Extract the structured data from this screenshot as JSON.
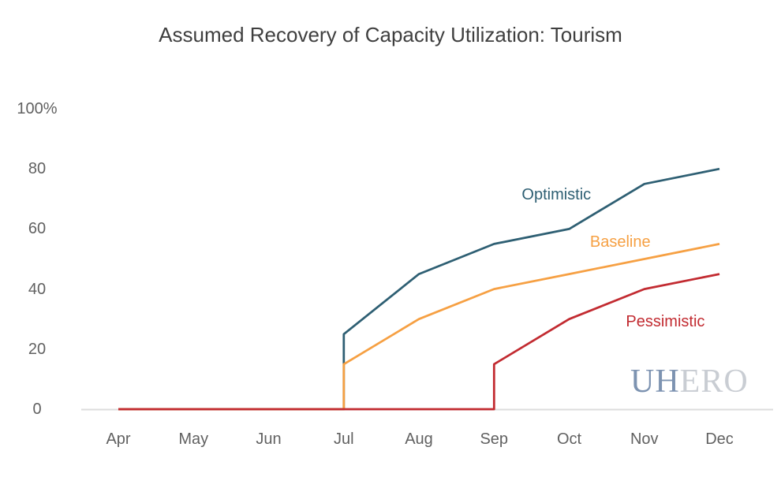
{
  "page": {
    "background_color": "#FFFFFF"
  },
  "chart_data": {
    "type": "line",
    "title": "Assumed Recovery of Capacity Utilization: Tourism",
    "title_color": "#3F3F3F",
    "x_categories": [
      "Apr",
      "May",
      "Jun",
      "Jul",
      "Aug",
      "Sep",
      "Oct",
      "Nov",
      "Dec"
    ],
    "y_ticks": [
      {
        "label": "100%",
        "value": 100
      },
      {
        "label": "80",
        "value": 80
      },
      {
        "label": "60",
        "value": 60
      },
      {
        "label": "40",
        "value": 40
      },
      {
        "label": "20",
        "value": 20
      },
      {
        "label": "0",
        "value": 0
      }
    ],
    "ylim": [
      0,
      100
    ],
    "grid": false,
    "axis_line_color": "#DCDCDC",
    "tick_label_color": "#616161",
    "legend": "inline-annotations-next-to-lines",
    "series": [
      {
        "name": "Optimistic",
        "color": "#2E5F73",
        "points": [
          [
            "Apr",
            0
          ],
          [
            "May",
            0
          ],
          [
            "Jun",
            0
          ],
          [
            "Jul",
            0
          ],
          [
            "Jul",
            25
          ],
          [
            "Aug",
            45
          ],
          [
            "Sep",
            55
          ],
          [
            "Oct",
            60
          ],
          [
            "Nov",
            75
          ],
          [
            "Dec",
            80
          ]
        ],
        "label_pos": {
          "x": 5.83,
          "y": 71.4
        }
      },
      {
        "name": "Baseline",
        "color": "#F6A043",
        "points": [
          [
            "Apr",
            0
          ],
          [
            "May",
            0
          ],
          [
            "Jun",
            0
          ],
          [
            "Jul",
            0
          ],
          [
            "Jul",
            15
          ],
          [
            "Aug",
            30
          ],
          [
            "Sep",
            40
          ],
          [
            "Oct",
            45
          ],
          [
            "Nov",
            50
          ],
          [
            "Dec",
            55
          ]
        ],
        "label_pos": {
          "x": 6.68,
          "y": 55.6
        }
      },
      {
        "name": "Pessimistic",
        "color": "#C22B31",
        "points": [
          [
            "Apr",
            0
          ],
          [
            "May",
            0
          ],
          [
            "Jun",
            0
          ],
          [
            "Jul",
            0
          ],
          [
            "Aug",
            0
          ],
          [
            "Sep",
            0
          ],
          [
            "Sep",
            15
          ],
          [
            "Oct",
            30
          ],
          [
            "Nov",
            40
          ],
          [
            "Dec",
            45
          ]
        ],
        "label_pos": {
          "x": 7.28,
          "y": 29.1
        }
      }
    ]
  },
  "watermark": {
    "uh": "UH",
    "ero": "ERO",
    "uh_color": "#7D93B1",
    "ero_color": "#C9CDD3"
  }
}
